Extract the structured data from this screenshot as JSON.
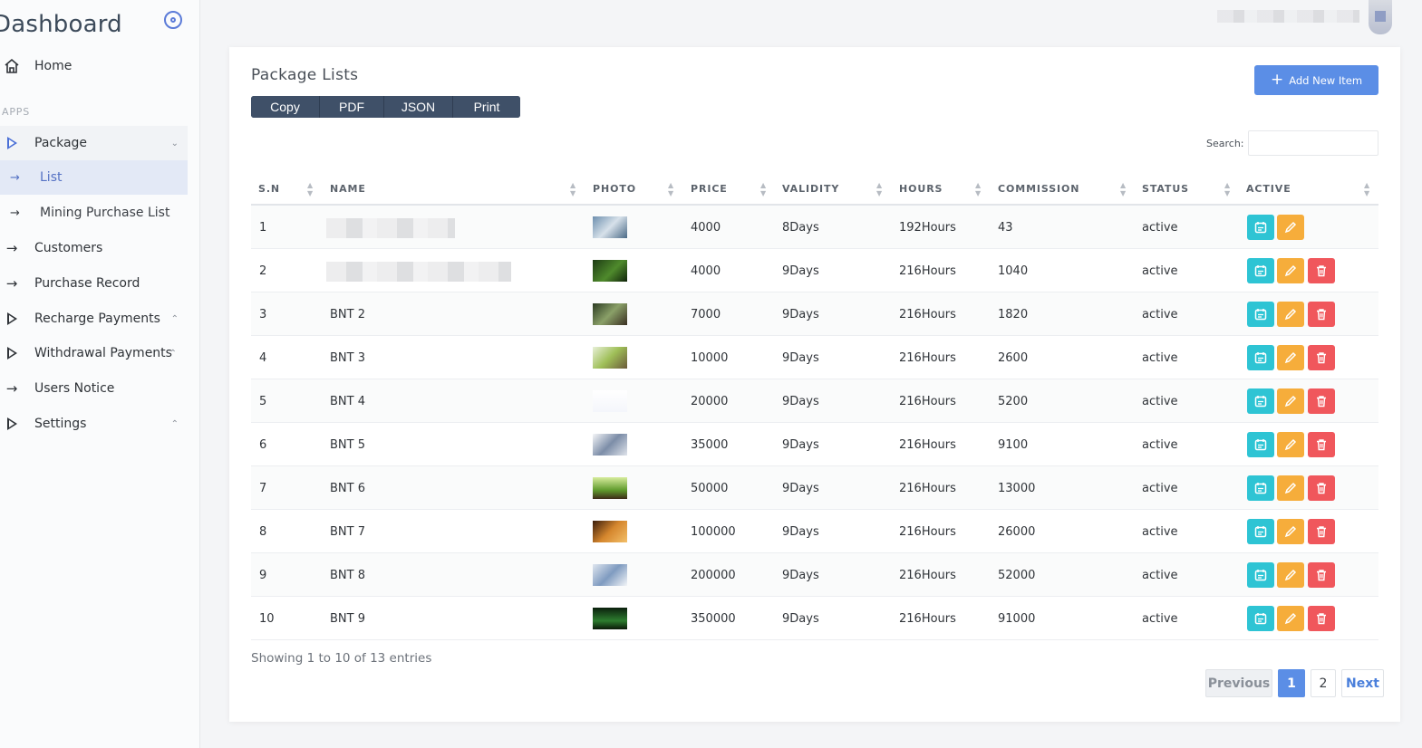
{
  "sidebar": {
    "brand": "Dashboard",
    "section_apps": "APPS",
    "items": [
      {
        "label": "Home",
        "icon": "home-icon"
      },
      {
        "label": "Package",
        "icon": "play-icon"
      },
      {
        "label": "List",
        "icon": "arrow-right-icon"
      },
      {
        "label": "Mining Purchase List",
        "icon": "arrow-right-icon"
      },
      {
        "label": "Customers",
        "icon": "arrow-right-icon"
      },
      {
        "label": "Purchase Record",
        "icon": "arrow-right-icon"
      },
      {
        "label": "Recharge Payments",
        "icon": "play-icon"
      },
      {
        "label": "Withdrawal Payments",
        "icon": "play-icon"
      },
      {
        "label": "Users Notice",
        "icon": "arrow-right-icon"
      },
      {
        "label": "Settings",
        "icon": "play-icon"
      }
    ]
  },
  "card": {
    "title": "Package Lists",
    "export_buttons": [
      "Copy",
      "PDF",
      "JSON",
      "Print"
    ],
    "add_button": "Add New Item",
    "search_label": "Search:",
    "search_value": ""
  },
  "table": {
    "headers": [
      "S.N",
      "NAME",
      "PHOTO",
      "PRICE",
      "VALIDITY",
      "HOURS",
      "COMMISSION",
      "STATUS",
      "ACTIVE"
    ],
    "rows": [
      {
        "sn": "1",
        "name": "",
        "price": "4000",
        "validity": "8Days",
        "hours": "192Hours",
        "commission": "43",
        "status": "active"
      },
      {
        "sn": "2",
        "name": "",
        "price": "4000",
        "validity": "9Days",
        "hours": "216Hours",
        "commission": "1040",
        "status": "active"
      },
      {
        "sn": "3",
        "name": "BNT 2",
        "price": "7000",
        "validity": "9Days",
        "hours": "216Hours",
        "commission": "1820",
        "status": "active"
      },
      {
        "sn": "4",
        "name": "BNT 3",
        "price": "10000",
        "validity": "9Days",
        "hours": "216Hours",
        "commission": "2600",
        "status": "active"
      },
      {
        "sn": "5",
        "name": "BNT 4",
        "price": "20000",
        "validity": "9Days",
        "hours": "216Hours",
        "commission": "5200",
        "status": "active"
      },
      {
        "sn": "6",
        "name": "BNT 5",
        "price": "35000",
        "validity": "9Days",
        "hours": "216Hours",
        "commission": "9100",
        "status": "active"
      },
      {
        "sn": "7",
        "name": "BNT 6",
        "price": "50000",
        "validity": "9Days",
        "hours": "216Hours",
        "commission": "13000",
        "status": "active"
      },
      {
        "sn": "8",
        "name": "BNT 7",
        "price": "100000",
        "validity": "9Days",
        "hours": "216Hours",
        "commission": "26000",
        "status": "active"
      },
      {
        "sn": "9",
        "name": "BNT 8",
        "price": "200000",
        "validity": "9Days",
        "hours": "216Hours",
        "commission": "52000",
        "status": "active"
      },
      {
        "sn": "10",
        "name": "BNT 9",
        "price": "350000",
        "validity": "9Days",
        "hours": "216Hours",
        "commission": "91000",
        "status": "active"
      }
    ]
  },
  "footer": {
    "info": "Showing 1 to 10 of 13 entries",
    "previous": "Previous",
    "pages": [
      "1",
      "2"
    ],
    "next": "Next"
  },
  "colors": {
    "primary": "#5b8ee6",
    "view": "#2ec4d4",
    "edit": "#f6ad3b",
    "delete": "#f0575c",
    "export_bar": "#3f5068"
  }
}
